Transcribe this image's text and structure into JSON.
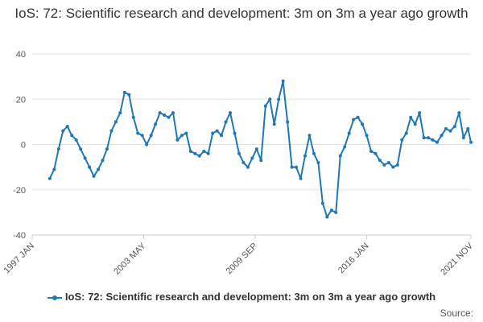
{
  "chart_data": {
    "type": "line",
    "title": "IoS: 72: Scientific research and development: 3m on 3m a year ago growth",
    "xlabel": "",
    "ylabel": "",
    "ylim": [
      -40,
      40
    ],
    "yticks": [
      -40,
      -20,
      0,
      20,
      40
    ],
    "xlim": [
      1997.0,
      2021.92
    ],
    "xticks": [
      {
        "label": "1997 JAN",
        "x": 1997.0
      },
      {
        "label": "2003 MAY",
        "x": 2003.33
      },
      {
        "label": "2009 SEP",
        "x": 2009.67
      },
      {
        "label": "2016 JAN",
        "x": 2016.0
      },
      {
        "label": "2021 NOV",
        "x": 2021.92
      }
    ],
    "series": [
      {
        "name": "IoS: 72: Scientific research and development: 3m on 3m a year ago growth",
        "color": "#1f78b4",
        "x": [
          1998.0,
          1998.25,
          1998.5,
          1998.75,
          1999.0,
          1999.25,
          1999.5,
          1999.75,
          2000.0,
          2000.25,
          2000.5,
          2000.75,
          2001.0,
          2001.25,
          2001.5,
          2001.75,
          2002.0,
          2002.25,
          2002.5,
          2002.75,
          2003.0,
          2003.25,
          2003.5,
          2003.75,
          2004.0,
          2004.25,
          2004.5,
          2004.75,
          2005.0,
          2005.25,
          2005.5,
          2005.75,
          2006.0,
          2006.25,
          2006.5,
          2006.75,
          2007.0,
          2007.25,
          2007.5,
          2007.75,
          2008.0,
          2008.25,
          2008.5,
          2008.75,
          2009.0,
          2009.25,
          2009.5,
          2009.75,
          2010.0,
          2010.25,
          2010.5,
          2010.75,
          2011.0,
          2011.25,
          2011.5,
          2011.75,
          2012.0,
          2012.25,
          2012.5,
          2012.75,
          2013.0,
          2013.25,
          2013.5,
          2013.75,
          2014.0,
          2014.25,
          2014.5,
          2014.75,
          2015.0,
          2015.25,
          2015.5,
          2015.75,
          2016.0,
          2016.25,
          2016.5,
          2016.75,
          2017.0,
          2017.25,
          2017.5,
          2017.75,
          2018.0,
          2018.25,
          2018.5,
          2018.75,
          2019.0,
          2019.25,
          2019.5,
          2019.75,
          2020.0,
          2020.25,
          2020.5,
          2020.75,
          2021.0,
          2021.25,
          2021.5,
          2021.75,
          2021.92
        ],
        "values": [
          -15,
          -11,
          -2,
          6,
          8,
          4,
          2,
          -2,
          -6,
          -10,
          -14,
          -11,
          -7,
          -2,
          6,
          10,
          14,
          23,
          22,
          12,
          5,
          4,
          0,
          4,
          9,
          14,
          13,
          12,
          14,
          2,
          4,
          5,
          -3,
          -4,
          -5,
          -3,
          -4,
          5,
          6,
          4,
          10,
          14,
          5,
          -4,
          -8,
          -10,
          -6,
          -2,
          -7,
          17,
          20,
          9,
          20,
          28,
          10,
          -10,
          -10,
          -15,
          -5,
          4,
          -4,
          -8,
          -26,
          -32,
          -29,
          -30,
          -5,
          -1,
          5,
          11,
          12,
          9,
          4,
          -3,
          -4,
          -7,
          -9,
          -8,
          -10,
          -9,
          2,
          5,
          12,
          9,
          14,
          3,
          3,
          2,
          1,
          4,
          7,
          6,
          8,
          14,
          3,
          7,
          1
        ]
      }
    ],
    "legend": "bottom",
    "source_label": "Source:"
  }
}
